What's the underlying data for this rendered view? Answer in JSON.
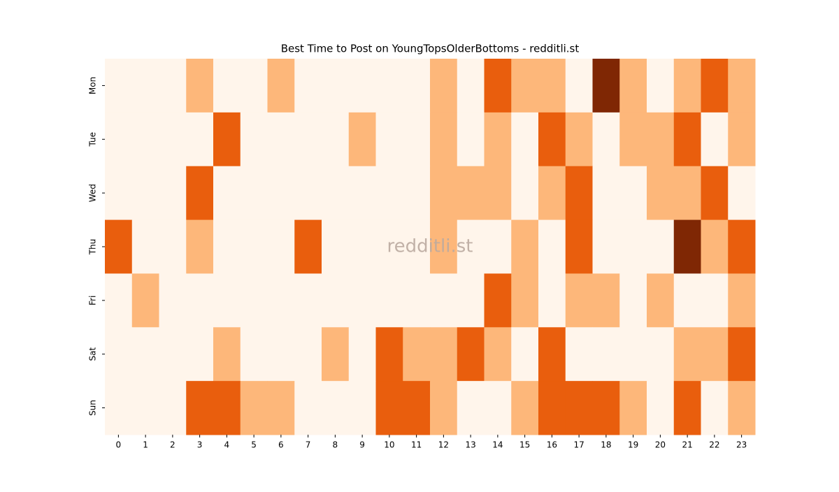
{
  "chart_data": {
    "type": "heatmap",
    "title": "Best Time to Post on YoungTopsOlderBottoms - redditli.st",
    "watermark": "redditli.st",
    "x": [
      "0",
      "1",
      "2",
      "3",
      "4",
      "5",
      "6",
      "7",
      "8",
      "9",
      "10",
      "11",
      "12",
      "13",
      "14",
      "15",
      "16",
      "17",
      "18",
      "19",
      "20",
      "21",
      "22",
      "23"
    ],
    "categories": [
      "Mon",
      "Tue",
      "Wed",
      "Thu",
      "Fri",
      "Sat",
      "Sun"
    ],
    "values": [
      [
        0,
        0,
        0,
        1,
        0,
        0,
        1,
        0,
        0,
        0,
        0,
        0,
        1,
        0,
        2,
        1,
        1,
        0,
        3,
        1,
        0,
        1,
        2,
        1
      ],
      [
        0,
        0,
        0,
        0,
        2,
        0,
        0,
        0,
        0,
        1,
        0,
        0,
        1,
        0,
        1,
        0,
        2,
        1,
        0,
        1,
        1,
        2,
        0,
        1
      ],
      [
        0,
        0,
        0,
        2,
        0,
        0,
        0,
        0,
        0,
        0,
        0,
        0,
        1,
        1,
        1,
        0,
        1,
        2,
        0,
        0,
        1,
        1,
        2,
        0
      ],
      [
        2,
        0,
        0,
        1,
        0,
        0,
        0,
        2,
        0,
        0,
        0,
        0,
        1,
        0,
        0,
        1,
        0,
        2,
        0,
        0,
        0,
        3,
        1,
        2
      ],
      [
        0,
        1,
        0,
        0,
        0,
        0,
        0,
        0,
        0,
        0,
        0,
        0,
        0,
        0,
        2,
        1,
        0,
        1,
        1,
        0,
        1,
        0,
        0,
        1
      ],
      [
        0,
        0,
        0,
        0,
        1,
        0,
        0,
        0,
        1,
        0,
        2,
        1,
        1,
        2,
        1,
        0,
        2,
        0,
        0,
        0,
        0,
        1,
        1,
        2
      ],
      [
        0,
        0,
        0,
        2,
        2,
        1,
        1,
        0,
        0,
        0,
        2,
        2,
        1,
        0,
        0,
        1,
        2,
        2,
        2,
        1,
        0,
        2,
        0,
        1
      ]
    ],
    "vlim": [
      0,
      3
    ],
    "colors": [
      "#fff5eb",
      "#fdb77a",
      "#e95e0d",
      "#7f2704"
    ]
  }
}
